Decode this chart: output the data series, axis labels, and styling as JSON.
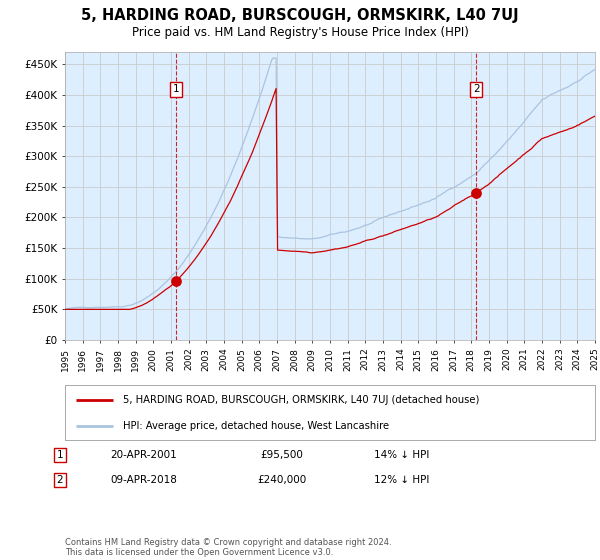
{
  "title": "5, HARDING ROAD, BURSCOUGH, ORMSKIRK, L40 7UJ",
  "subtitle": "Price paid vs. HM Land Registry's House Price Index (HPI)",
  "hpi_legend": "HPI: Average price, detached house, West Lancashire",
  "price_legend": "5, HARDING ROAD, BURSCOUGH, ORMSKIRK, L40 7UJ (detached house)",
  "annotation1_label": "1",
  "annotation1_date": "20-APR-2001",
  "annotation1_price": "£95,500",
  "annotation1_hpi": "14% ↓ HPI",
  "annotation2_label": "2",
  "annotation2_date": "09-APR-2018",
  "annotation2_price": "£240,000",
  "annotation2_hpi": "12% ↓ HPI",
  "footer": "Contains HM Land Registry data © Crown copyright and database right 2024.\nThis data is licensed under the Open Government Licence v3.0.",
  "ylim": [
    0,
    470000
  ],
  "xstart_year": 1995,
  "xend_year": 2025,
  "sale1_year": 2001.27,
  "sale1_price": 95500,
  "sale2_year": 2018.27,
  "sale2_price": 240000,
  "hpi_color": "#aac4e0",
  "price_color": "#cc0000",
  "bg_color": "#ddeeff",
  "grid_color": "#cccccc",
  "vline_color": "#cc0000",
  "dot_color": "#cc0000"
}
